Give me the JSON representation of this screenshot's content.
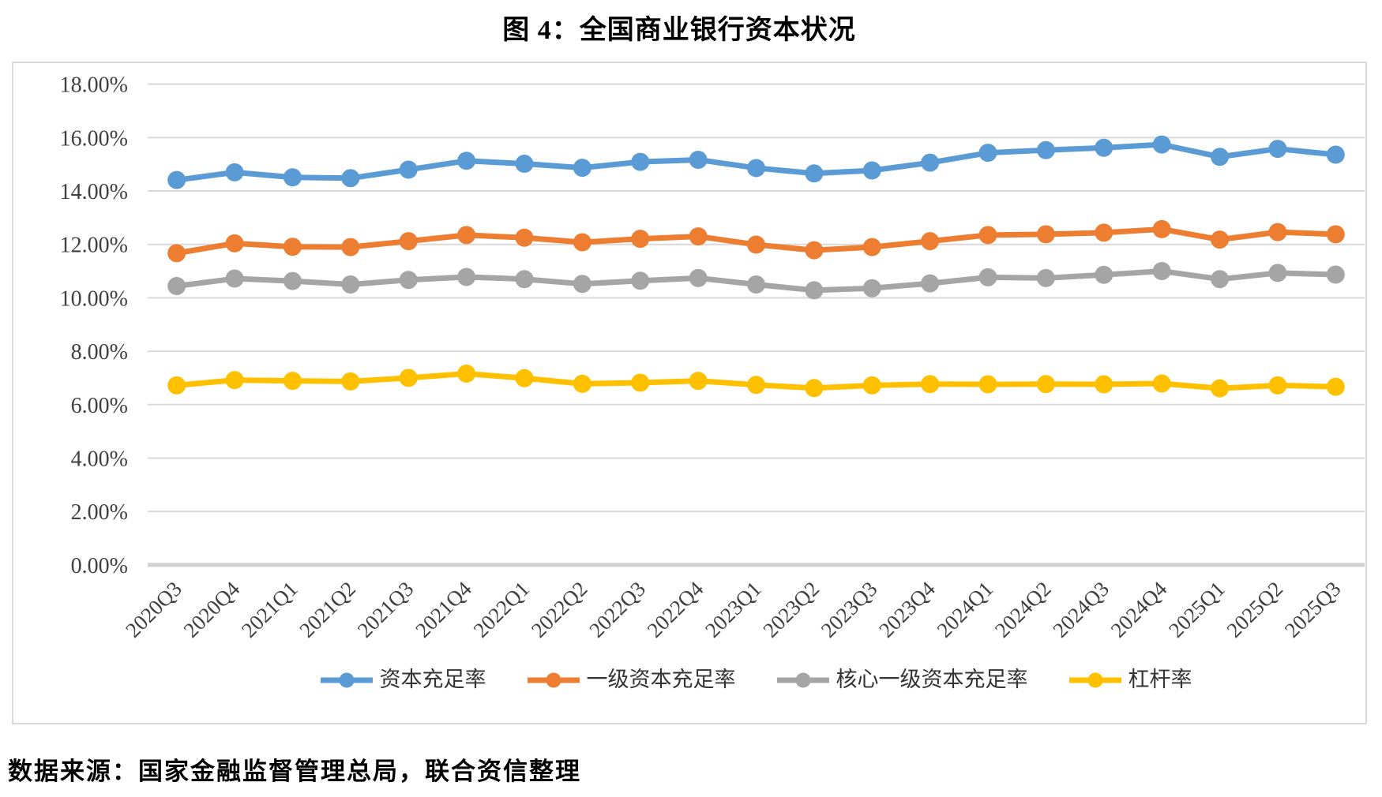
{
  "title": "图 4：全国商业银行资本状况",
  "source_note": "数据来源：国家金融监督管理总局，联合资信整理",
  "chart_data": {
    "type": "line",
    "title": "图 4：全国商业银行资本状况",
    "categories": [
      "2020Q3",
      "2020Q4",
      "2021Q1",
      "2021Q2",
      "2021Q3",
      "2021Q4",
      "2022Q1",
      "2022Q2",
      "2022Q3",
      "2022Q4",
      "2023Q1",
      "2023Q2",
      "2023Q3",
      "2023Q4",
      "2024Q1",
      "2024Q2",
      "2024Q3",
      "2024Q4",
      "2025Q1",
      "2025Q2",
      "2025Q3"
    ],
    "series": [
      {
        "name": "资本充足率",
        "color": "#5B9BD5",
        "values": [
          14.41,
          14.7,
          14.51,
          14.48,
          14.8,
          15.13,
          15.02,
          14.87,
          15.09,
          15.17,
          14.86,
          14.66,
          14.77,
          15.06,
          15.43,
          15.53,
          15.62,
          15.74,
          15.28,
          15.58,
          15.36
        ]
      },
      {
        "name": "一级资本充足率",
        "color": "#ED7D31",
        "values": [
          11.67,
          12.04,
          11.91,
          11.9,
          12.12,
          12.35,
          12.25,
          12.08,
          12.21,
          12.3,
          11.99,
          11.78,
          11.9,
          12.12,
          12.35,
          12.38,
          12.44,
          12.57,
          12.18,
          12.46,
          12.38
        ]
      },
      {
        "name": "核心一级资本充足率",
        "color": "#A5A5A5",
        "values": [
          10.44,
          10.72,
          10.63,
          10.5,
          10.67,
          10.78,
          10.7,
          10.52,
          10.64,
          10.74,
          10.5,
          10.28,
          10.36,
          10.54,
          10.77,
          10.74,
          10.86,
          11.0,
          10.7,
          10.93,
          10.87
        ]
      },
      {
        "name": "杠杆率",
        "color": "#FFC000",
        "values": [
          6.72,
          6.92,
          6.89,
          6.87,
          7.0,
          7.16,
          6.99,
          6.78,
          6.82,
          6.89,
          6.74,
          6.62,
          6.72,
          6.77,
          6.76,
          6.77,
          6.76,
          6.79,
          6.61,
          6.72,
          6.67
        ]
      }
    ],
    "ylim": [
      0,
      18
    ],
    "y_tick_step": 2,
    "y_tick_labels": [
      "0.00%",
      "2.00%",
      "4.00%",
      "6.00%",
      "8.00%",
      "10.00%",
      "12.00%",
      "14.00%",
      "16.00%",
      "18.00%"
    ],
    "grid": true,
    "legend_position": "bottom",
    "gridline_color": "#D9D9D9",
    "axis_text_color": "#3F3F3F"
  }
}
